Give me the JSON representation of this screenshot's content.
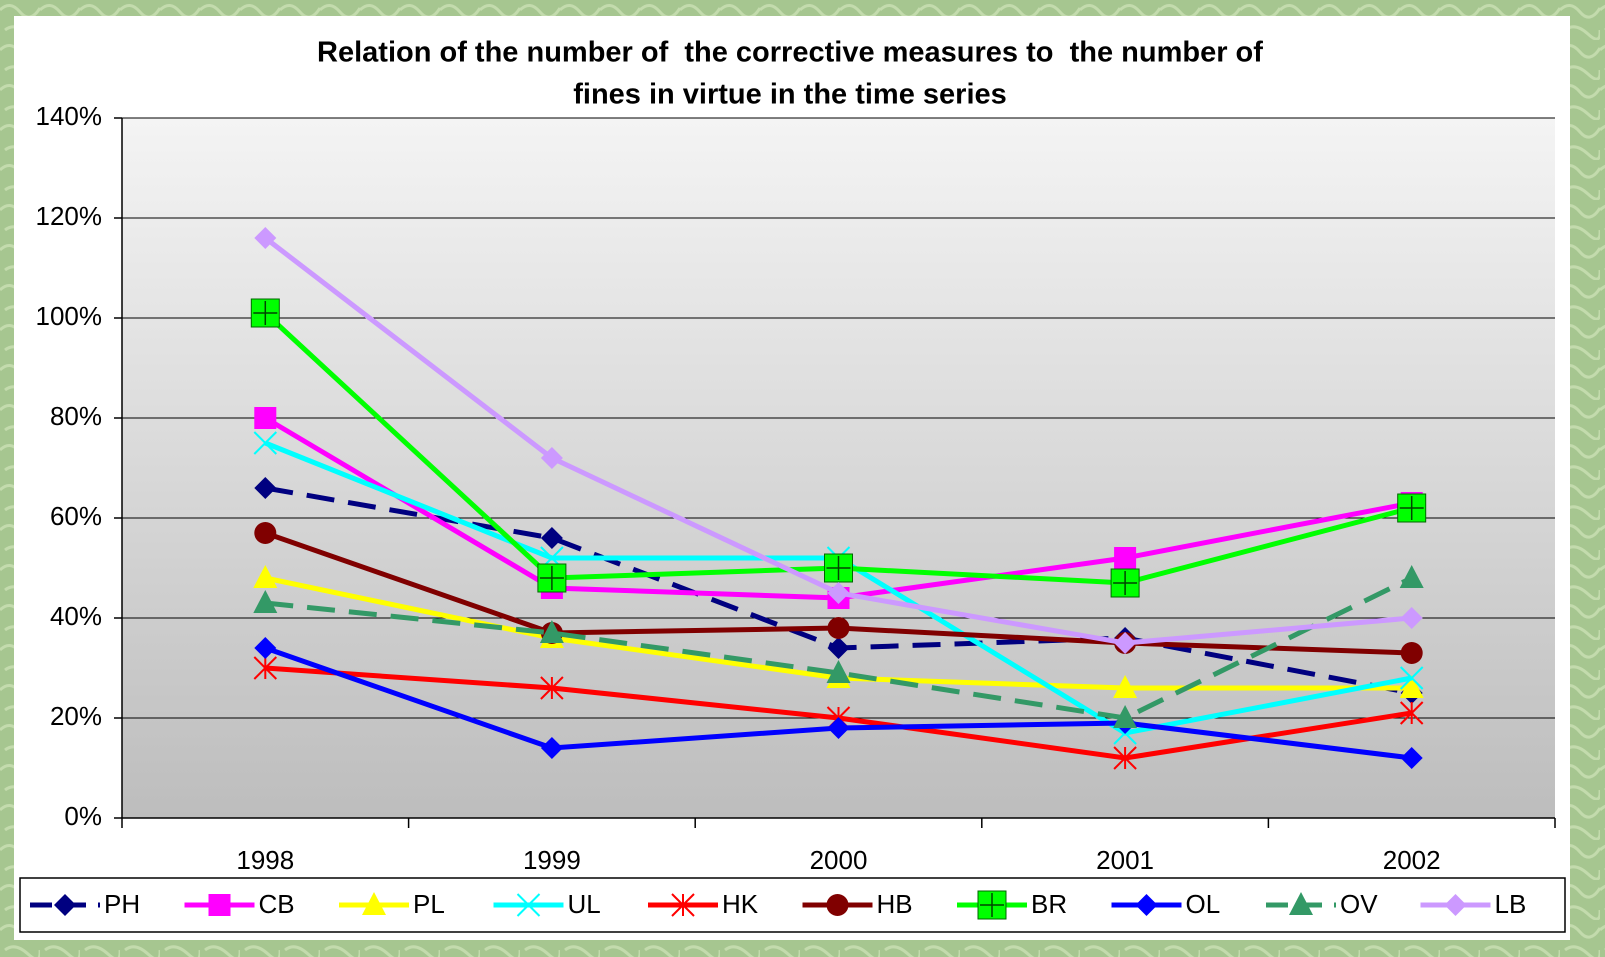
{
  "chart_data": {
    "type": "line",
    "title": [
      "Relation of the number of  the corrective measures to  the number of",
      "fines in virtue in the time series"
    ],
    "categories": [
      "1998",
      "1999",
      "2000",
      "2001",
      "2002"
    ],
    "ylim": [
      0,
      140
    ],
    "yticks": [
      {
        "value": 0,
        "label": "0%"
      },
      {
        "value": 20,
        "label": "20%"
      },
      {
        "value": 40,
        "label": "40%"
      },
      {
        "value": 60,
        "label": "60%"
      },
      {
        "value": 80,
        "label": "80%"
      },
      {
        "value": 100,
        "label": "100%"
      },
      {
        "value": 120,
        "label": "120%"
      },
      {
        "value": 140,
        "label": "140%"
      }
    ],
    "grid": true,
    "legend": "bottom",
    "series": [
      {
        "name": "PH",
        "color": "#000080",
        "marker": "diamond",
        "dashed": true,
        "values": [
          66,
          56,
          34,
          36,
          25
        ]
      },
      {
        "name": "CB",
        "color": "#ff00ff",
        "marker": "square",
        "dashed": false,
        "values": [
          80,
          46,
          44,
          52,
          63
        ]
      },
      {
        "name": "PL",
        "color": "#ffff00",
        "marker": "triangle",
        "dashed": false,
        "values": [
          48,
          36,
          28,
          26,
          26
        ]
      },
      {
        "name": "UL",
        "color": "#00ffff",
        "marker": "x",
        "dashed": false,
        "values": [
          75,
          52,
          52,
          17,
          28
        ]
      },
      {
        "name": "HK",
        "color": "#ff0000",
        "marker": "star",
        "dashed": false,
        "values": [
          30,
          26,
          20,
          12,
          21
        ]
      },
      {
        "name": "HB",
        "color": "#800000",
        "marker": "circle",
        "dashed": false,
        "values": [
          57,
          37,
          38,
          35,
          33
        ]
      },
      {
        "name": "BR",
        "color": "#00ff00",
        "marker": "plus-square",
        "dashed": false,
        "values": [
          101,
          48,
          50,
          47,
          62
        ]
      },
      {
        "name": "OL",
        "color": "#0000ff",
        "marker": "diamond",
        "dashed": false,
        "values": [
          34,
          14,
          18,
          19,
          12
        ]
      },
      {
        "name": "OV",
        "color": "#339966",
        "marker": "triangle",
        "dashed": true,
        "values": [
          43,
          37,
          29,
          20,
          48
        ]
      },
      {
        "name": "LB",
        "color": "#cc99ff",
        "marker": "diamond",
        "dashed": false,
        "values": [
          116,
          72,
          45,
          35,
          40
        ]
      }
    ]
  }
}
